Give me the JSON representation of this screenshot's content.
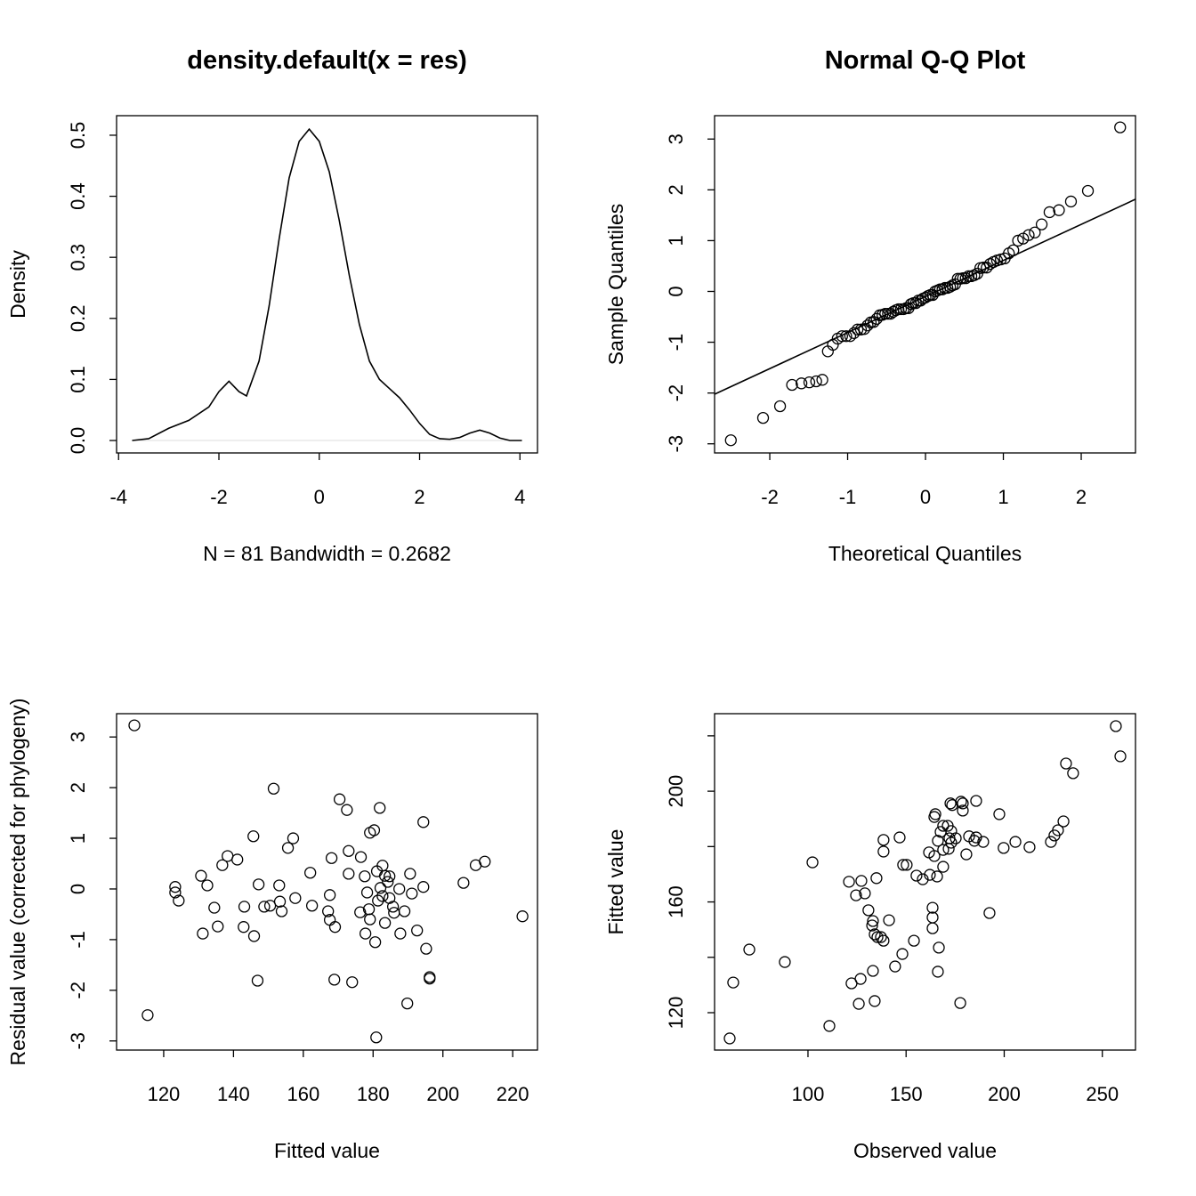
{
  "chart_data": [
    {
      "type": "line",
      "title": "density.default(x = res)",
      "xlabel": "N = 81   Bandwidth = 0.2682",
      "ylabel": "Density",
      "xlim": [
        -4.04,
        4.35
      ],
      "ylim": [
        -0.0204,
        0.532
      ],
      "xticks": [
        -4,
        -2,
        0,
        2,
        4
      ],
      "yticks": [
        {
          "value": 0,
          "label": "0.0"
        },
        0.1,
        0.2,
        0.3,
        0.4,
        0.5
      ],
      "color": "#000000",
      "x": [
        -3.73,
        -3.4,
        -3.0,
        -2.6,
        -2.2,
        -2.0,
        -1.8,
        -1.6,
        -1.45,
        -1.2,
        -1.0,
        -0.8,
        -0.6,
        -0.4,
        -0.2,
        0.0,
        0.2,
        0.4,
        0.6,
        0.8,
        1.0,
        1.2,
        1.4,
        1.6,
        1.8,
        2.0,
        2.2,
        2.4,
        2.6,
        2.8,
        3.0,
        3.2,
        3.4,
        3.6,
        3.8,
        4.04
      ],
      "values": [
        0.0,
        0.003,
        0.02,
        0.033,
        0.055,
        0.08,
        0.097,
        0.08,
        0.073,
        0.13,
        0.22,
        0.33,
        0.43,
        0.49,
        0.51,
        0.49,
        0.44,
        0.36,
        0.27,
        0.19,
        0.13,
        0.1,
        0.085,
        0.07,
        0.05,
        0.028,
        0.01,
        0.003,
        0.002,
        0.005,
        0.012,
        0.017,
        0.012,
        0.004,
        0.0,
        0.0
      ]
    },
    {
      "type": "scatter",
      "title": "Normal Q-Q Plot",
      "xlabel": "Theoretical Quantiles",
      "ylabel": "Sample Quantiles",
      "xlim": [
        -2.709,
        2.697
      ],
      "ylim": [
        -3.18,
        3.46
      ],
      "xticks": [
        -2,
        -1,
        0,
        1,
        2
      ],
      "yticks": [
        -3,
        -2,
        -1,
        0,
        1,
        2,
        3
      ],
      "color": "#000000",
      "qq_line": {
        "intercept": -0.1,
        "slope": 0.71
      },
      "x": [
        -2.5,
        -2.086,
        -1.868,
        -1.714,
        -1.593,
        -1.492,
        -1.404,
        -1.325,
        -1.254,
        -1.189,
        -1.128,
        -1.071,
        -1.018,
        -0.967,
        -0.919,
        -0.873,
        -0.829,
        -0.786,
        -0.744,
        -0.704,
        -0.665,
        -0.627,
        -0.589,
        -0.553,
        -0.517,
        -0.482,
        -0.448,
        -0.414,
        -0.38,
        -0.347,
        -0.315,
        -0.282,
        -0.25,
        -0.218,
        -0.187,
        -0.156,
        -0.124,
        -0.093,
        -0.062,
        -0.031,
        0,
        0.031,
        0.062,
        0.093,
        0.124,
        0.156,
        0.187,
        0.218,
        0.25,
        0.282,
        0.315,
        0.347,
        0.38,
        0.414,
        0.448,
        0.482,
        0.517,
        0.553,
        0.589,
        0.627,
        0.665,
        0.704,
        0.744,
        0.786,
        0.829,
        0.873,
        0.919,
        0.967,
        1.018,
        1.071,
        1.128,
        1.189,
        1.254,
        1.325,
        1.404,
        1.492,
        1.593,
        1.714,
        1.868,
        2.086,
        2.5
      ],
      "values": [
        -2.93,
        -2.49,
        -2.26,
        -1.84,
        -1.81,
        -1.79,
        -1.77,
        -1.74,
        -1.18,
        -1.05,
        -0.93,
        -0.88,
        -0.88,
        -0.88,
        -0.82,
        -0.75,
        -0.75,
        -0.74,
        -0.67,
        -0.61,
        -0.6,
        -0.54,
        -0.47,
        -0.46,
        -0.44,
        -0.44,
        -0.44,
        -0.4,
        -0.37,
        -0.35,
        -0.35,
        -0.35,
        -0.33,
        -0.33,
        -0.25,
        -0.23,
        -0.23,
        -0.18,
        -0.18,
        -0.14,
        -0.12,
        -0.09,
        -0.07,
        -0.07,
        0.0,
        0.02,
        0.04,
        0.04,
        0.07,
        0.07,
        0.09,
        0.12,
        0.14,
        0.25,
        0.25,
        0.26,
        0.26,
        0.3,
        0.3,
        0.32,
        0.35,
        0.46,
        0.47,
        0.47,
        0.54,
        0.58,
        0.61,
        0.63,
        0.65,
        0.75,
        0.81,
        1.0,
        1.04,
        1.11,
        1.16,
        1.32,
        1.56,
        1.6,
        1.77,
        1.98,
        3.23
      ]
    },
    {
      "type": "scatter",
      "xlabel": "Fitted value",
      "ylabel": "Residual value (corrected for phylogeny)",
      "xlim": [
        106.5,
        227.1
      ],
      "ylim": [
        -3.18,
        3.46
      ],
      "xticks": [
        120,
        140,
        160,
        180,
        200,
        220
      ],
      "yticks": [
        -3,
        -2,
        -1,
        0,
        1,
        2,
        3
      ],
      "color": "#000000",
      "x": [
        111.6,
        115.4,
        123.3,
        123.3,
        124.3,
        130.7,
        132.5,
        131.2,
        134.5,
        135.5,
        136.8,
        138.3,
        141.1,
        143.1,
        142.9,
        145.7,
        145.9,
        147.2,
        146.9,
        148.8,
        150.5,
        151.5,
        153.1,
        153.3,
        153.8,
        155.6,
        157.1,
        157.7,
        162.0,
        162.5,
        167.1,
        167.6,
        168.1,
        167.6,
        169.1,
        168.9,
        170.4,
        172.5,
        173.0,
        173.0,
        174.0,
        176.5,
        176.3,
        177.6,
        177.8,
        178.3,
        178.8,
        179.1,
        180.3,
        179.1,
        180.6,
        180.9,
        181.1,
        181.4,
        181.9,
        182.1,
        182.7,
        182.7,
        183.4,
        183.4,
        184.2,
        184.7,
        184.7,
        185.7,
        186.0,
        187.5,
        187.8,
        189.0,
        189.8,
        190.6,
        191.1,
        192.6,
        194.4,
        194.4,
        195.2,
        196.2,
        196.2,
        205.9,
        209.4,
        212.0,
        222.8
      ],
      "values": [
        3.23,
        -2.49,
        0.04,
        -0.07,
        -0.23,
        0.26,
        0.07,
        -0.88,
        -0.37,
        -0.74,
        0.47,
        0.65,
        0.58,
        -0.35,
        -0.75,
        1.04,
        -0.93,
        0.09,
        -1.81,
        -0.35,
        -0.33,
        1.98,
        0.07,
        -0.25,
        -0.44,
        0.81,
        1.0,
        -0.18,
        0.32,
        -0.33,
        -0.44,
        -0.12,
        0.61,
        -0.61,
        -0.75,
        -1.79,
        1.77,
        1.56,
        0.75,
        0.3,
        -1.84,
        0.63,
        -0.46,
        0.25,
        -0.88,
        -0.07,
        -0.4,
        1.11,
        1.16,
        -0.6,
        -1.05,
        -2.93,
        0.35,
        -0.23,
        1.6,
        0.02,
        0.46,
        -0.14,
        0.26,
        -0.67,
        0.14,
        0.25,
        -0.18,
        -0.35,
        -0.47,
        0.0,
        -0.88,
        -0.44,
        -2.26,
        0.3,
        -0.09,
        -0.82,
        1.32,
        0.04,
        -1.18,
        -1.74,
        -1.77,
        0.12,
        0.47,
        0.54,
        -0.54
      ]
    },
    {
      "type": "scatter",
      "xlabel": "Observed value",
      "ylabel": "Fitted value",
      "xlim": [
        52.4,
        266.9
      ],
      "ylim": [
        106.5,
        228.0
      ],
      "xticks": [
        100,
        150,
        200,
        250
      ],
      "yticks": [
        120,
        160,
        200
      ],
      "yticks_unlabeled": [
        140,
        180,
        220
      ],
      "color": "#000000",
      "x": [
        60.1,
        61.9,
        70.1,
        88.2,
        102.3,
        110.9,
        120.9,
        122.2,
        124.5,
        125.9,
        127.2,
        126.8,
        129.0,
        130.8,
        132.7,
        133.1,
        134.0,
        133.1,
        134.0,
        134.9,
        135.4,
        137.2,
        138.5,
        138.5,
        138.5,
        141.3,
        144.4,
        146.7,
        148.1,
        148.5,
        150.3,
        154.0,
        155.3,
        158.5,
        161.7,
        162.1,
        163.5,
        163.5,
        163.5,
        164.4,
        164.4,
        164.9,
        165.8,
        166.2,
        166.7,
        166.2,
        167.6,
        168.9,
        168.9,
        168.9,
        171.2,
        171.7,
        172.1,
        172.6,
        173.0,
        173.0,
        173.5,
        175.3,
        178.0,
        178.9,
        178.9,
        177.6,
        180.7,
        182.1,
        184.8,
        185.7,
        185.7,
        189.3,
        192.5,
        197.5,
        199.7,
        205.7,
        212.9,
        223.8,
        225.6,
        227.4,
        230.2,
        231.5,
        235.1,
        256.9,
        259.2
      ],
      "values": [
        110.7,
        130.9,
        142.8,
        138.3,
        174.3,
        115.2,
        167.3,
        130.6,
        162.4,
        123.2,
        167.6,
        132.2,
        163.1,
        157.0,
        151.5,
        153.1,
        148.3,
        135.1,
        124.2,
        168.6,
        147.3,
        147.3,
        182.4,
        178.2,
        146.0,
        153.4,
        136.7,
        183.3,
        141.2,
        173.4,
        173.4,
        146.0,
        169.5,
        168.2,
        177.9,
        169.8,
        157.9,
        154.4,
        150.5,
        190.7,
        176.6,
        191.7,
        169.2,
        134.8,
        143.5,
        182.1,
        185.3,
        187.5,
        172.7,
        178.8,
        187.5,
        179.2,
        183.0,
        195.6,
        185.6,
        181.4,
        195.0,
        183.0,
        196.2,
        193.0,
        195.6,
        123.5,
        177.2,
        183.7,
        182.1,
        183.3,
        196.5,
        181.7,
        156.0,
        191.7,
        179.5,
        181.7,
        179.8,
        181.7,
        184.0,
        185.9,
        189.1,
        210.0,
        206.5,
        223.5,
        212.6
      ]
    }
  ]
}
